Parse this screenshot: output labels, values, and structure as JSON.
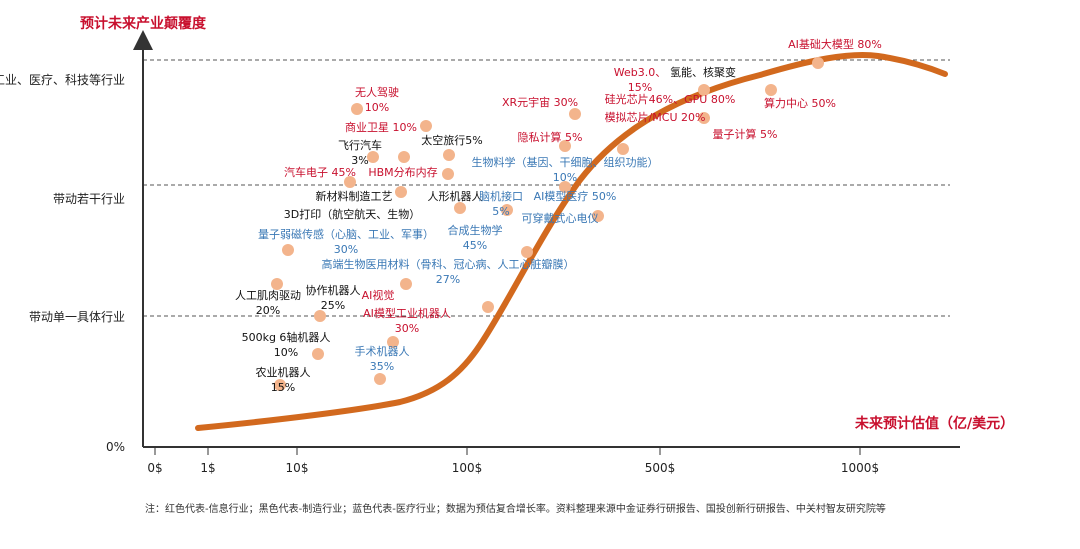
{
  "chart_data": {
    "type": "scatter",
    "title": "预计未来产业颠覆度",
    "ylabel": "预计未来产业颠覆度",
    "xlabel": "未来预计估值（亿/美元）",
    "x_ticks": [
      "0$",
      "1$",
      "10$",
      "100$",
      "500$",
      "1000$"
    ],
    "y_ticks": [
      "0%",
      "带动单一具体行业",
      "带动若干行业",
      "带动消费、工业、医疗、科技等行业"
    ],
    "series_colors": {
      "info": "#c8102e",
      "manufacturing": "#111111",
      "medical": "#3a78b5"
    },
    "marker_color": "#f3b48c",
    "curve_color": "#d2691e",
    "points": [
      {
        "label": [
          "AI基础大模型 80%"
        ],
        "category": "info"
      },
      {
        "label": [
          "Web3.0、",
          "15%"
        ],
        "category": "info"
      },
      {
        "label": [
          "氢能、核聚变"
        ],
        "category": "manufacturing"
      },
      {
        "label": [
          "硅光芯片46%、GPU 80%"
        ],
        "category": "info"
      },
      {
        "label": [
          "算力中心 50%"
        ],
        "category": "info"
      },
      {
        "label": [
          "模拟芯片/MCU 20%"
        ],
        "category": "info"
      },
      {
        "label": [
          "量子计算 5%"
        ],
        "category": "info"
      },
      {
        "label": [
          "XR元宇宙 30%"
        ],
        "category": "info"
      },
      {
        "label": [
          "隐私计算 5%"
        ],
        "category": "info"
      },
      {
        "label": [
          "生物料学（基因、干细胞、组织功能）",
          "10%"
        ],
        "category": "medical"
      },
      {
        "label": [
          "AI模型医疗 50%"
        ],
        "category": "medical"
      },
      {
        "label": [
          "可穿戴式心电仪"
        ],
        "category": "medical"
      },
      {
        "label": [
          "无人驾驶",
          "10%"
        ],
        "category": "info"
      },
      {
        "label": [
          "商业卫星 10%"
        ],
        "category": "info"
      },
      {
        "label": [
          "太空旅行5%"
        ],
        "category": "manufacturing"
      },
      {
        "label": [
          "飞行汽车",
          "3%"
        ],
        "category": "manufacturing"
      },
      {
        "label": [
          "汽车电子 45%"
        ],
        "category": "info"
      },
      {
        "label": [
          "HBM分布内存"
        ],
        "category": "info"
      },
      {
        "label": [
          "新材料制造工艺"
        ],
        "category": "manufacturing"
      },
      {
        "label": [
          "人形机器人"
        ],
        "category": "manufacturing"
      },
      {
        "label": [
          "脑机接口",
          "5%"
        ],
        "category": "medical"
      },
      {
        "label": [
          "3D打印（航空航天、生物）"
        ],
        "category": "manufacturing"
      },
      {
        "label": [
          "量子弱磁传感（心脑、工业、军事）",
          "30%"
        ],
        "category": "medical"
      },
      {
        "label": [
          "合成生物学",
          "45%"
        ],
        "category": "medical"
      },
      {
        "label": [
          "高端生物医用材料（骨科、冠心病、人工心脏瓣膜）",
          "27%"
        ],
        "category": "medical"
      },
      {
        "label": [
          "人工肌肉驱动",
          "20%"
        ],
        "category": "manufacturing"
      },
      {
        "label": [
          "协作机器人",
          "25%"
        ],
        "category": "manufacturing"
      },
      {
        "label": [
          "AI视觉"
        ],
        "category": "info"
      },
      {
        "label": [
          "AI模型工业机器人",
          "30%"
        ],
        "category": "info"
      },
      {
        "label": [
          "500kg 6轴机器人",
          "10%"
        ],
        "category": "manufacturing"
      },
      {
        "label": [
          "手术机器人",
          "35%"
        ],
        "category": "medical"
      },
      {
        "label": [
          "农业机器人",
          "15%"
        ],
        "category": "manufacturing"
      },
      {
        "label": [],
        "category": "manufacturing"
      }
    ]
  },
  "footnote": "注：红色代表-信息行业；黑色代表-制造行业；蓝色代表-医疗行业；数据为预估复合增长率。资料整理来源中金证券行研报告、国投创新行研报告、中关村智友研究院等"
}
